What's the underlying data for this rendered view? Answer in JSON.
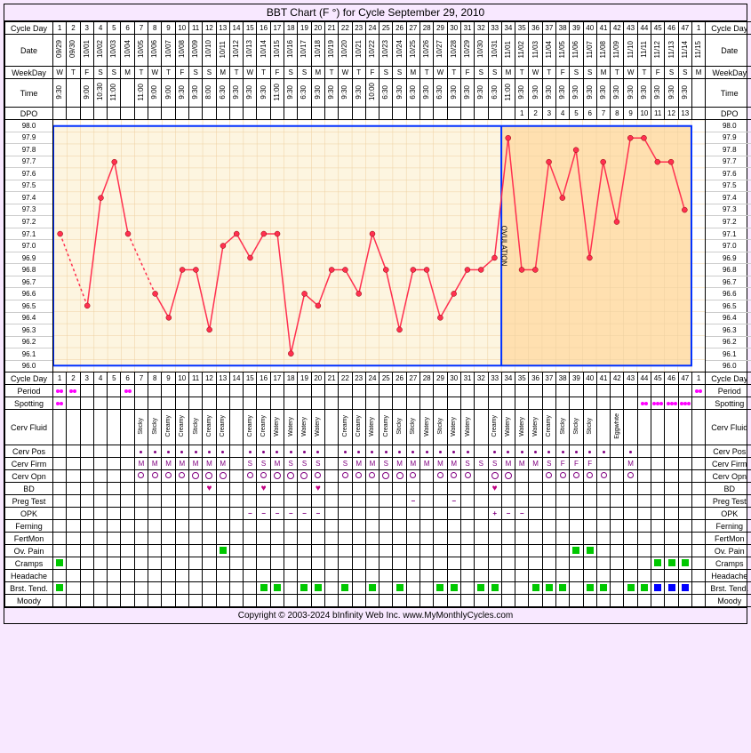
{
  "title": "BBT Chart (F °) for Cycle September 29, 2010",
  "footer": "Copyright © 2003-2024 bInfinity Web Inc.    www.MyMonthlyCycles.com",
  "numDays": 47,
  "ovulationDay": 34,
  "dates": [
    "09/29",
    "09/30",
    "10/01",
    "10/02",
    "10/03",
    "10/04",
    "10/05",
    "10/06",
    "10/07",
    "10/08",
    "10/09",
    "10/10",
    "10/11",
    "10/12",
    "10/13",
    "10/14",
    "10/15",
    "10/16",
    "10/17",
    "10/18",
    "10/19",
    "10/20",
    "10/21",
    "10/22",
    "10/23",
    "10/24",
    "10/25",
    "10/26",
    "10/27",
    "10/28",
    "10/29",
    "10/30",
    "10/31",
    "11/01",
    "11/02",
    "11/03",
    "11/04",
    "11/05",
    "11/06",
    "11/07",
    "11/08",
    "11/09",
    "11/10",
    "11/11",
    "11/12",
    "11/13",
    "11/14"
  ],
  "weekdays": [
    "W",
    "T",
    "F",
    "S",
    "S",
    "M",
    "T",
    "W",
    "T",
    "F",
    "S",
    "S",
    "M",
    "T",
    "W",
    "T",
    "F",
    "S",
    "S",
    "M",
    "T",
    "W",
    "T",
    "F",
    "S",
    "S",
    "M",
    "T",
    "W",
    "T",
    "F",
    "S",
    "S",
    "M",
    "T",
    "W",
    "T",
    "F",
    "S",
    "S",
    "M",
    "T",
    "W",
    "T",
    "F",
    "S",
    "S"
  ],
  "finalDate": "11/15",
  "finalWeekday": "M",
  "times": [
    "9:30",
    "",
    "9:00",
    "10:30",
    "11:00",
    "",
    "11:00",
    "9:00",
    "9:00",
    "9:30",
    "9:30",
    "8:00",
    "6:30",
    "9:30",
    "9:30",
    "9:30",
    "11:00",
    "9:30",
    "6:30",
    "9:30",
    "9:30",
    "9:30",
    "9:30",
    "10:00",
    "6:30",
    "9:30",
    "6:30",
    "9:30",
    "6:30",
    "9:30",
    "9:30",
    "9:30",
    "6:30",
    "11:00",
    "9:30",
    "9:30",
    "9:30",
    "9:30",
    "9:30",
    "9:30",
    "9:30",
    "9:30",
    "9:30",
    "9:30",
    "9:30",
    "9:30",
    "9:30"
  ],
  "dpo": [
    "",
    "",
    "",
    "",
    "",
    "",
    "",
    "",
    "",
    "",
    "",
    "",
    "",
    "",
    "",
    "",
    "",
    "",
    "",
    "",
    "",
    "",
    "",
    "",
    "",
    "",
    "",
    "",
    "",
    "",
    "",
    "",
    "",
    "",
    "1",
    "2",
    "3",
    "4",
    "5",
    "6",
    "7",
    "8",
    "9",
    "10",
    "11",
    "12",
    "13"
  ],
  "tempLabels": [
    "98.0",
    "97.9",
    "97.8",
    "97.7",
    "97.6",
    "97.5",
    "97.4",
    "97.3",
    "97.2",
    "97.1",
    "97.0",
    "96.9",
    "96.8",
    "96.7",
    "96.6",
    "96.5",
    "96.4",
    "96.3",
    "96.2",
    "96.1",
    "96.0"
  ],
  "chart": {
    "ylim": [
      96.0,
      98.0
    ],
    "temps": [
      97.1,
      null,
      96.5,
      97.4,
      97.7,
      97.1,
      null,
      96.6,
      96.4,
      96.8,
      96.8,
      96.3,
      97.0,
      97.1,
      96.9,
      97.1,
      97.1,
      96.1,
      96.6,
      96.5,
      96.8,
      96.8,
      96.6,
      97.1,
      96.8,
      96.3,
      96.8,
      96.8,
      96.4,
      96.6,
      96.8,
      96.8,
      96.9,
      97.9,
      96.8,
      96.8,
      97.7,
      97.4,
      97.8,
      96.9,
      97.7,
      97.2,
      97.9,
      97.9,
      97.7,
      97.7,
      97.3
    ],
    "lineColor": "#ff3050",
    "pointColor": "#ff3050",
    "dashedSegments": [
      [
        0,
        2
      ]
    ],
    "gridColor": "#eed0a0",
    "lutealBg": "#ffe0b0",
    "ovulationBorder": "#0030ff",
    "ovulationLabel": "OVULATION"
  },
  "headers": {
    "cycleDay": "Cycle Day",
    "date": "Date",
    "weekday": "WeekDay",
    "time": "Time",
    "dpo": "DPO",
    "period": "Period",
    "spotting": "Spotting",
    "cervFluid": "Cerv Fluid",
    "cervPos": "Cerv Pos",
    "cervFirm": "Cerv Firm",
    "cervOpn": "Cerv Opn",
    "bd": "BD",
    "pregTest": "Preg Test",
    "opk": "OPK",
    "ferning": "Ferning",
    "fertMon": "FertMon",
    "ovPain": "Ov. Pain",
    "cramps": "Cramps",
    "headache": "Headache",
    "brstTend": "Brst. Tend.",
    "moody": "Moody"
  },
  "rows": {
    "period": {
      "1": "d",
      "2": "d",
      "3": "P",
      "4": "P",
      "5": "P",
      "6": "d"
    },
    "periodFinal": "d",
    "spotting": {
      "1": "d",
      "44": "d",
      "45": "D",
      "46": "D",
      "47": "D"
    },
    "cervFluid": {
      "7": "Sticky",
      "8": "Sticky",
      "9": "Creamy",
      "10": "Creamy",
      "11": "Sticky",
      "12": "Creamy",
      "13": "Creamy",
      "15": "Creamy",
      "16": "Creamy",
      "17": "Watery",
      "18": "Watery",
      "19": "Watery",
      "20": "Watery",
      "22": "Creamy",
      "23": "Creamy",
      "24": "Watery",
      "25": "Creamy",
      "26": "Sticky",
      "27": "Sticky",
      "28": "Watery",
      "29": "Sticky",
      "30": "Watery",
      "31": "Watery",
      "33": "Creamy",
      "34": "Watery",
      "35": "Watery",
      "36": "Watery",
      "37": "Creamy",
      "38": "Sticky",
      "39": "Sticky",
      "40": "Sticky",
      "42": "Eggwhite"
    },
    "cervPos": {
      "7": 1,
      "8": 1,
      "9": 1,
      "10": 1,
      "11": 1,
      "12": 1,
      "13": 1,
      "15": 1,
      "16": 1,
      "17": 1,
      "18": 1,
      "19": 1,
      "20": 1,
      "22": 1,
      "23": 1,
      "24": 1,
      "25": 1,
      "26": 1,
      "27": 1,
      "28": 1,
      "29": 1,
      "30": 1,
      "31": 1,
      "33": 1,
      "34": 1,
      "35": 1,
      "36": 1,
      "37": 1,
      "38": 1,
      "39": 1,
      "40": 1,
      "41": 1,
      "43": 1
    },
    "cervFirm": {
      "7": "M",
      "8": "M",
      "9": "M",
      "10": "M",
      "11": "M",
      "12": "M",
      "13": "M",
      "15": "S",
      "16": "S",
      "17": "M",
      "18": "S",
      "19": "S",
      "20": "S",
      "22": "S",
      "23": "M",
      "24": "M",
      "25": "S",
      "26": "M",
      "27": "M",
      "28": "M",
      "29": "M",
      "30": "M",
      "31": "S",
      "32": "S",
      "33": "S",
      "34": "M",
      "35": "M",
      "36": "M",
      "37": "S",
      "38": "F",
      "39": "F",
      "40": "F",
      "43": "M"
    },
    "cervOpn": {
      "7": "o",
      "8": "o",
      "9": "o",
      "10": "o",
      "11": "O",
      "12": "O",
      "13": "O",
      "15": "o",
      "16": "o",
      "17": "O",
      "18": "O",
      "19": "O",
      "20": "o",
      "22": "o",
      "23": "o",
      "24": "o",
      "25": "O",
      "26": "O",
      "27": "o",
      "29": "o",
      "30": "o",
      "31": "o",
      "33": "O",
      "34": "O",
      "37": "o",
      "38": "o",
      "39": "o",
      "40": "o",
      "41": "o",
      "43": "o"
    },
    "bd": {
      "12": "h",
      "16": "h",
      "20": "h",
      "33": "h"
    },
    "pregTest": {
      "27": "-",
      "30": "-"
    },
    "opk": {
      "15": "-",
      "16": "-",
      "17": "-",
      "18": "-",
      "19": "-",
      "20": "-",
      "33": "+",
      "34": "-",
      "35": "-"
    },
    "ovPain": {
      "13": "g",
      "39": "g",
      "40": "g"
    },
    "cramps": {
      "1": "g",
      "45": "g",
      "46": "g",
      "47": "g"
    },
    "brstTend": {
      "1": "g",
      "16": "g",
      "17": "g",
      "19": "g",
      "20": "g",
      "22": "g",
      "24": "g",
      "26": "g",
      "29": "g",
      "30": "g",
      "32": "g",
      "33": "g",
      "36": "g",
      "37": "g",
      "38": "g",
      "40": "g",
      "41": "g",
      "43": "g",
      "44": "g",
      "45": "b",
      "46": "b",
      "47": "b"
    }
  }
}
